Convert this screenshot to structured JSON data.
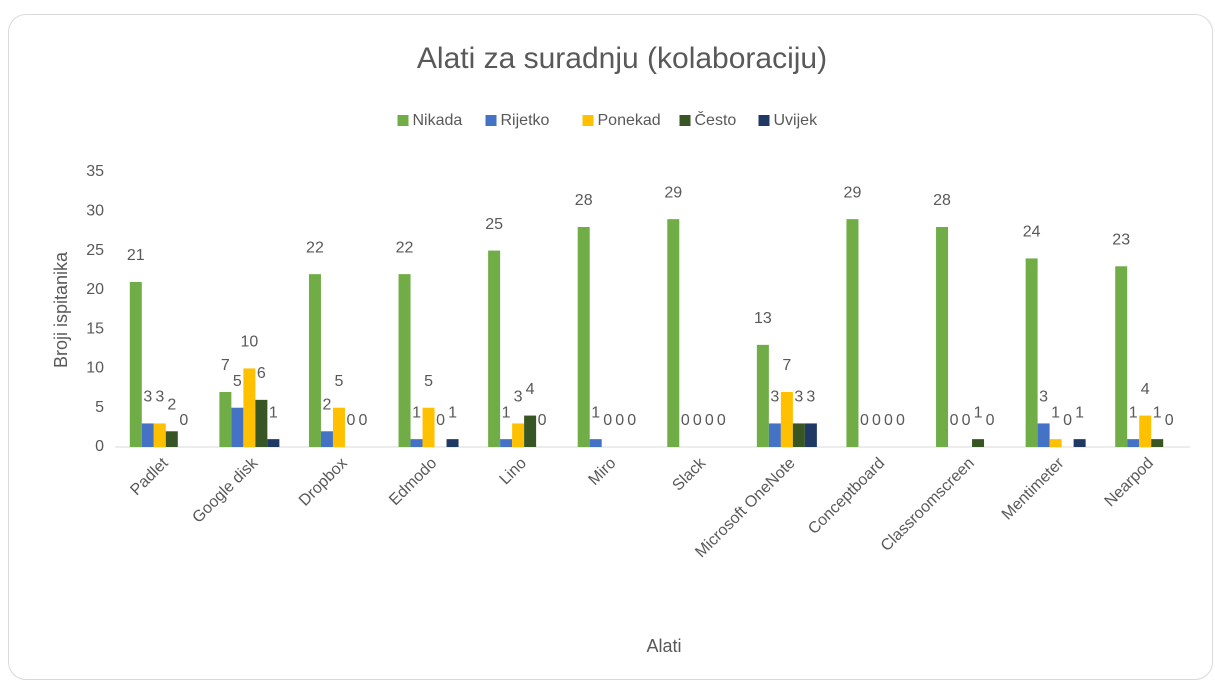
{
  "chart_data": {
    "type": "bar",
    "title": "Alati za suradnju (kolaboraciju)",
    "x_label": "Alati",
    "y_label": "Broji ispitanika",
    "categories": [
      "Padlet",
      "Google disk",
      "Dropbox",
      "Edmodo",
      "Lino",
      "Miro",
      "Slack",
      "Microsoft OneNote",
      "Conceptboard",
      "Classroomscreen",
      "Mentimeter",
      "Nearpod"
    ],
    "series": [
      {
        "name": "Nikada",
        "color": "#70ad47",
        "values": [
          21,
          7,
          22,
          22,
          25,
          28,
          29,
          13,
          29,
          28,
          24,
          23
        ]
      },
      {
        "name": "Rijetko",
        "color": "#4472c4",
        "values": [
          3,
          5,
          2,
          1,
          1,
          1,
          0,
          3,
          0,
          0,
          3,
          1
        ]
      },
      {
        "name": "Ponekad",
        "color": "#ffc000",
        "values": [
          3,
          10,
          5,
          5,
          3,
          0,
          0,
          7,
          0,
          0,
          1,
          4
        ]
      },
      {
        "name": "Često",
        "color": "#375623",
        "values": [
          2,
          6,
          0,
          0,
          4,
          0,
          0,
          3,
          0,
          1,
          0,
          1
        ]
      },
      {
        "name": "Uvijek",
        "color": "#1f3864",
        "values": [
          0,
          1,
          0,
          1,
          0,
          0,
          0,
          3,
          0,
          0,
          1,
          0
        ]
      }
    ],
    "ylim": [
      0,
      35
    ],
    "yticks": [
      0,
      5,
      10,
      15,
      20,
      25,
      30,
      35
    ],
    "legend": "top",
    "data_labels": true
  }
}
